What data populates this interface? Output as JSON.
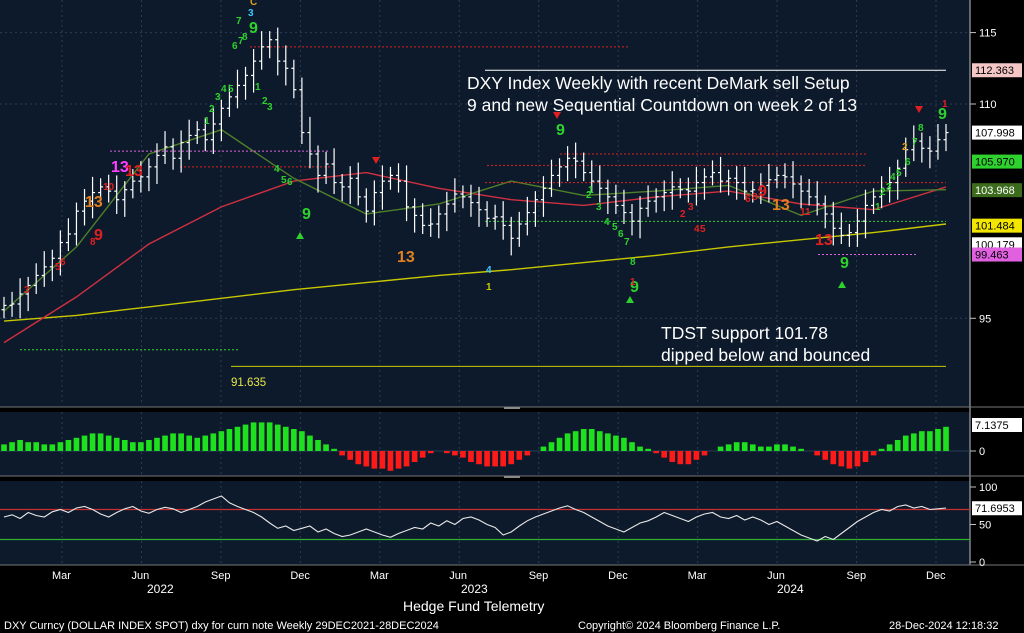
{
  "chart_data": {
    "type": "candlestick",
    "title": "DXY Index Weekly with recent DeMark sell Setup",
    "title_line2": "9 and new Sequential Countdown on week 2 of 13",
    "annotation_support_line1": "TDST support 101.78",
    "annotation_support_line2": "dipped below and bounced",
    "level_label_91": "91.635",
    "x_ticks": [
      "Mar",
      "Jun",
      "Sep",
      "Dec",
      "Mar",
      "Jun",
      "Sep",
      "Dec",
      "Mar",
      "Jun",
      "Sep",
      "Dec"
    ],
    "year_labels": [
      "2022",
      "2023",
      "2024"
    ],
    "price_axis": {
      "range": [
        89,
        117
      ],
      "ticks": [
        "115",
        "110",
        "95"
      ]
    },
    "right_tags": [
      {
        "text": "112.363",
        "value": 112.363,
        "bg": "#f4c6c6",
        "fg": "#000000"
      },
      {
        "text": "107.998",
        "value": 107.998,
        "bg": "#ffffff",
        "fg": "#000000"
      },
      {
        "text": "105.970",
        "value": 105.97,
        "bg": "#2fd12f",
        "fg": "#000000"
      },
      {
        "text": "103.968",
        "value": 103.968,
        "bg": "#3d6b1e",
        "fg": "#ffffff"
      },
      {
        "text": "101.484",
        "value": 101.484,
        "bg": "#f2e600",
        "fg": "#000000"
      },
      {
        "text": "100.179",
        "value": 100.179,
        "bg": "#ffffff",
        "fg": "#000000"
      },
      {
        "text": "99.463",
        "value": 99.463,
        "bg": "#e060e0",
        "fg": "#000000"
      }
    ],
    "series": [
      {
        "name": "",
        "type": "line",
        "color": "#c8c800",
        "values": [
          94.8,
          95.2,
          95.8,
          96.4,
          97.0,
          97.5,
          98.0,
          98.4,
          98.9,
          99.4,
          100.0,
          100.5,
          101.0,
          101.6
        ]
      },
      {
        "name": "",
        "type": "line",
        "color": "#d03040",
        "values": [
          93.3,
          96.5,
          100.2,
          102.8,
          104.6,
          105.2,
          104.1,
          103.3,
          102.9,
          103.5,
          103.9,
          103.0,
          102.6,
          104.2
        ]
      },
      {
        "name": "",
        "type": "line",
        "color": "#4f7f2a",
        "values": [
          95.5,
          100.0,
          106.5,
          108.2,
          104.8,
          102.3,
          103.0,
          104.6,
          103.6,
          103.9,
          104.3,
          102.2,
          103.9,
          104.0
        ]
      }
    ],
    "ohlc_closes": [
      95.9,
      96.0,
      96.7,
      97.3,
      98.0,
      98.6,
      99.2,
      100.3,
      100.9,
      102.5,
      103.2,
      103.8,
      104.2,
      103.9,
      103.3,
      104.0,
      104.6,
      104.9,
      105.6,
      106.4,
      107.0,
      106.2,
      107.3,
      107.8,
      108.2,
      107.5,
      108.6,
      109.7,
      110.5,
      111.3,
      112.0,
      113.0,
      114.0,
      114.5,
      113.0,
      112.5,
      111.0,
      108.0,
      106.5,
      105.0,
      105.8,
      104.5,
      104.2,
      104.8,
      103.5,
      102.5,
      103.8,
      104.6,
      105.0,
      104.6,
      102.8,
      102.2,
      101.5,
      101.6,
      102.3,
      103.0,
      103.7,
      103.5,
      103.1,
      102.6,
      102.0,
      102.1,
      101.5,
      100.6,
      101.6,
      102.4,
      103.3,
      104.1,
      105.0,
      105.6,
      106.2,
      106.0,
      105.2,
      104.6,
      104.1,
      103.5,
      102.9,
      102.4,
      101.8,
      102.7,
      103.2,
      103.5,
      103.8,
      104.2,
      104.0,
      103.9,
      104.5,
      104.9,
      105.2,
      104.6,
      104.8,
      104.5,
      103.9,
      104.0,
      104.3,
      104.7,
      105.0,
      104.9,
      104.4,
      103.9,
      103.5,
      103.0,
      102.3,
      101.3,
      100.8,
      101.0,
      101.8,
      102.9,
      103.5,
      104.1,
      104.5,
      105.5,
      106.8,
      107.4,
      106.9,
      106.7,
      107.5,
      108.0
    ]
  },
  "td_labels": [
    {
      "t": "3",
      "c": "#e02020"
    },
    {
      "t": "5",
      "c": "#e02020"
    },
    {
      "t": "6",
      "c": "#e02020"
    },
    {
      "t": "8",
      "c": "#e02020"
    },
    {
      "t": "9",
      "c": "#e02020"
    },
    {
      "t": "13",
      "c": "#e08020"
    },
    {
      "t": "10",
      "c": "#e02020"
    },
    {
      "t": "13",
      "c": "#ff40ff"
    },
    {
      "t": "13",
      "c": "#e02020"
    },
    {
      "t": "1",
      "c": "#2fd12f"
    },
    {
      "t": "2",
      "c": "#2fd12f"
    },
    {
      "t": "3",
      "c": "#2fd12f"
    },
    {
      "t": "4",
      "c": "#2fd12f"
    },
    {
      "t": "5",
      "c": "#2fd12f"
    },
    {
      "t": "6",
      "c": "#2fd12f"
    },
    {
      "t": "7",
      "c": "#2fd12f"
    },
    {
      "t": "8",
      "c": "#2fd12f"
    },
    {
      "t": "9",
      "c": "#2fd12f"
    },
    {
      "t": "7",
      "c": "#2fd12f"
    },
    {
      "t": "3",
      "c": "#40c8ff"
    },
    {
      "t": "C",
      "c": "#e0a020"
    },
    {
      "t": "1",
      "c": "#2fd12f"
    },
    {
      "t": "2",
      "c": "#2fd12f"
    },
    {
      "t": "3",
      "c": "#2fd12f"
    },
    {
      "t": "4",
      "c": "#2fd12f"
    },
    {
      "t": "5",
      "c": "#2fd12f"
    },
    {
      "t": "6",
      "c": "#2fd12f"
    },
    {
      "t": "9",
      "c": "#2fd12f"
    },
    {
      "t": "13",
      "c": "#e08020"
    },
    {
      "t": "4",
      "c": "#40c8ff"
    },
    {
      "t": "1",
      "c": "#c8c800"
    },
    {
      "t": "9",
      "c": "#2fd12f"
    },
    {
      "t": "1",
      "c": "#2fd12f"
    },
    {
      "t": "2",
      "c": "#2fd12f"
    },
    {
      "t": "3",
      "c": "#2fd12f"
    },
    {
      "t": "4",
      "c": "#2fd12f"
    },
    {
      "t": "5",
      "c": "#2fd12f"
    },
    {
      "t": "6",
      "c": "#2fd12f"
    },
    {
      "t": "7",
      "c": "#2fd12f"
    },
    {
      "t": "8",
      "c": "#2fd12f"
    },
    {
      "t": "9",
      "c": "#2fd12f"
    },
    {
      "t": "1",
      "c": "#e02020"
    },
    {
      "t": "2",
      "c": "#e02020"
    },
    {
      "t": "3",
      "c": "#e02020"
    },
    {
      "t": "4",
      "c": "#e02020"
    },
    {
      "t": "5",
      "c": "#e02020"
    },
    {
      "t": "6",
      "c": "#e02020"
    },
    {
      "t": "8",
      "c": "#e02020"
    },
    {
      "t": "9",
      "c": "#e02020"
    },
    {
      "t": "13",
      "c": "#e08020"
    },
    {
      "t": "11",
      "c": "#e02020"
    },
    {
      "t": "13",
      "c": "#e02020"
    },
    {
      "t": "9",
      "c": "#2fd12f"
    },
    {
      "t": "1",
      "c": "#2fd12f"
    },
    {
      "t": "2",
      "c": "#2fd12f"
    },
    {
      "t": "3",
      "c": "#2fd12f"
    },
    {
      "t": "4",
      "c": "#2fd12f"
    },
    {
      "t": "5",
      "c": "#2fd12f"
    },
    {
      "t": "6",
      "c": "#2fd12f"
    },
    {
      "t": "7",
      "c": "#2fd12f"
    },
    {
      "t": "8",
      "c": "#2fd12f"
    },
    {
      "t": "9",
      "c": "#2fd12f"
    },
    {
      "t": "1",
      "c": "#e02020"
    },
    {
      "t": "2",
      "c": "#e0a020"
    }
  ],
  "macd": {
    "axis_ticks": [
      "0"
    ],
    "tag": {
      "text": "7.1375",
      "value": 7.1375
    },
    "values": [
      3,
      4,
      5,
      4,
      4,
      3,
      3,
      4,
      5,
      6,
      7,
      8,
      8,
      7,
      6,
      5,
      4,
      4,
      5,
      6,
      7,
      8,
      8,
      7,
      6,
      7,
      8,
      9,
      10,
      11,
      12,
      13,
      13,
      13,
      12,
      11,
      10,
      9,
      7,
      5,
      3,
      1,
      -2,
      -4,
      -6,
      -7,
      -8,
      -8,
      -9,
      -8,
      -7,
      -5,
      -3,
      -1,
      0,
      -1,
      -2,
      -3,
      -5,
      -6,
      -7,
      -7,
      -7,
      -6,
      -4,
      -2,
      0,
      2,
      4,
      6,
      8,
      9,
      10,
      10,
      9,
      8,
      7,
      6,
      4,
      2,
      1,
      -1,
      -3,
      -5,
      -6,
      -6,
      -4,
      -2,
      0,
      2,
      3,
      4,
      4,
      3,
      2,
      2,
      3,
      3,
      2,
      1,
      0,
      -2,
      -4,
      -6,
      -7,
      -8,
      -7,
      -5,
      -2,
      1,
      3,
      5,
      7,
      8,
      9,
      9,
      10,
      11
    ]
  },
  "rsi": {
    "axis_ticks": [
      "100",
      "50",
      "0"
    ],
    "tag": {
      "text": "71.6953",
      "value": 71.6953
    },
    "upper_band": 70,
    "lower_band": 30,
    "values": [
      60,
      63,
      58,
      66,
      62,
      60,
      67,
      70,
      66,
      72,
      74,
      70,
      64,
      60,
      66,
      71,
      74,
      68,
      65,
      70,
      73,
      71,
      66,
      70,
      74,
      80,
      84,
      88,
      79,
      74,
      70,
      66,
      60,
      52,
      45,
      48,
      42,
      45,
      48,
      40,
      44,
      38,
      34,
      36,
      40,
      44,
      40,
      36,
      33,
      38,
      42,
      46,
      44,
      52,
      48,
      55,
      50,
      58,
      60,
      56,
      50,
      46,
      36,
      40,
      48,
      55,
      60,
      64,
      68,
      72,
      75,
      70,
      66,
      60,
      54,
      48,
      44,
      40,
      46,
      52,
      55,
      60,
      66,
      62,
      58,
      54,
      60,
      64,
      66,
      60,
      58,
      62,
      56,
      60,
      56,
      50,
      54,
      48,
      42,
      36,
      32,
      28,
      34,
      30,
      38,
      46,
      54,
      60,
      66,
      70,
      68,
      74,
      76,
      72,
      74,
      70,
      71,
      72
    ]
  },
  "footer": {
    "center_label": "Hedge Fund Telemetry",
    "left": "DXY Curncy (DOLLAR INDEX SPOT) dxy for curn note  Weekly 29DEC2021-28DEC2024",
    "copyright": "Copyright© 2024 Bloomberg Finance L.P.",
    "timestamp": "28-Dec-2024 12:18:32"
  },
  "colors": {
    "background": "#000000",
    "plot_bg": "#0d1a2b",
    "bar_color": "#ffffff",
    "macd_pos": "#1fe01f",
    "macd_neg": "#ff1a1a",
    "rsi_line": "#e8e8e8",
    "rsi_upper": "#c83030",
    "rsi_lower": "#30b030"
  }
}
